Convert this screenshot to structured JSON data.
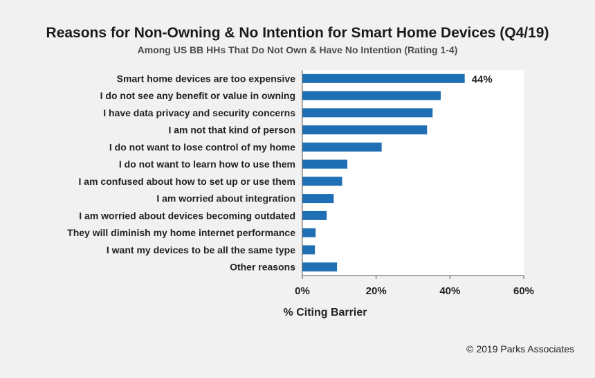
{
  "chart_data": {
    "type": "bar",
    "orientation": "horizontal",
    "title": "Reasons for Non-Owning & No Intention for Smart Home Devices (Q4/19)",
    "subtitle": "Among US BB HHs That Do Not Own & Have No Intention  (Rating 1-4)",
    "xlabel": "% Citing Barrier",
    "categories": [
      "Smart home devices are too expensive",
      "I do not see any benefit or value in owning",
      "I have data privacy and security concerns",
      "I am not that kind of person",
      "I do not want to lose control of my home",
      "I do not want to learn how to use them",
      "I am confused about how to set up or use them",
      "I am worried about integration",
      "I am worried about devices becoming outdated",
      "They will diminish my home internet performance",
      "I want my devices to be all the same type",
      "Other reasons"
    ],
    "values": [
      44,
      37.5,
      35.3,
      33.8,
      21.5,
      12.2,
      10.8,
      8.5,
      6.6,
      3.6,
      3.4,
      9.4
    ],
    "data_labels": [
      "44%",
      "",
      "",
      "",
      "",
      "",
      "",
      "",
      "",
      "",
      "",
      ""
    ],
    "xlim": [
      0,
      60
    ],
    "xticks": [
      0,
      20,
      40,
      60
    ],
    "xtick_labels": [
      "0%",
      "20%",
      "40%",
      "60%"
    ],
    "grid": false,
    "bar_color": "#1f6fb5",
    "plot_background": "#ffffff"
  },
  "footer": {
    "copyright": "© 2019 Parks Associates"
  }
}
